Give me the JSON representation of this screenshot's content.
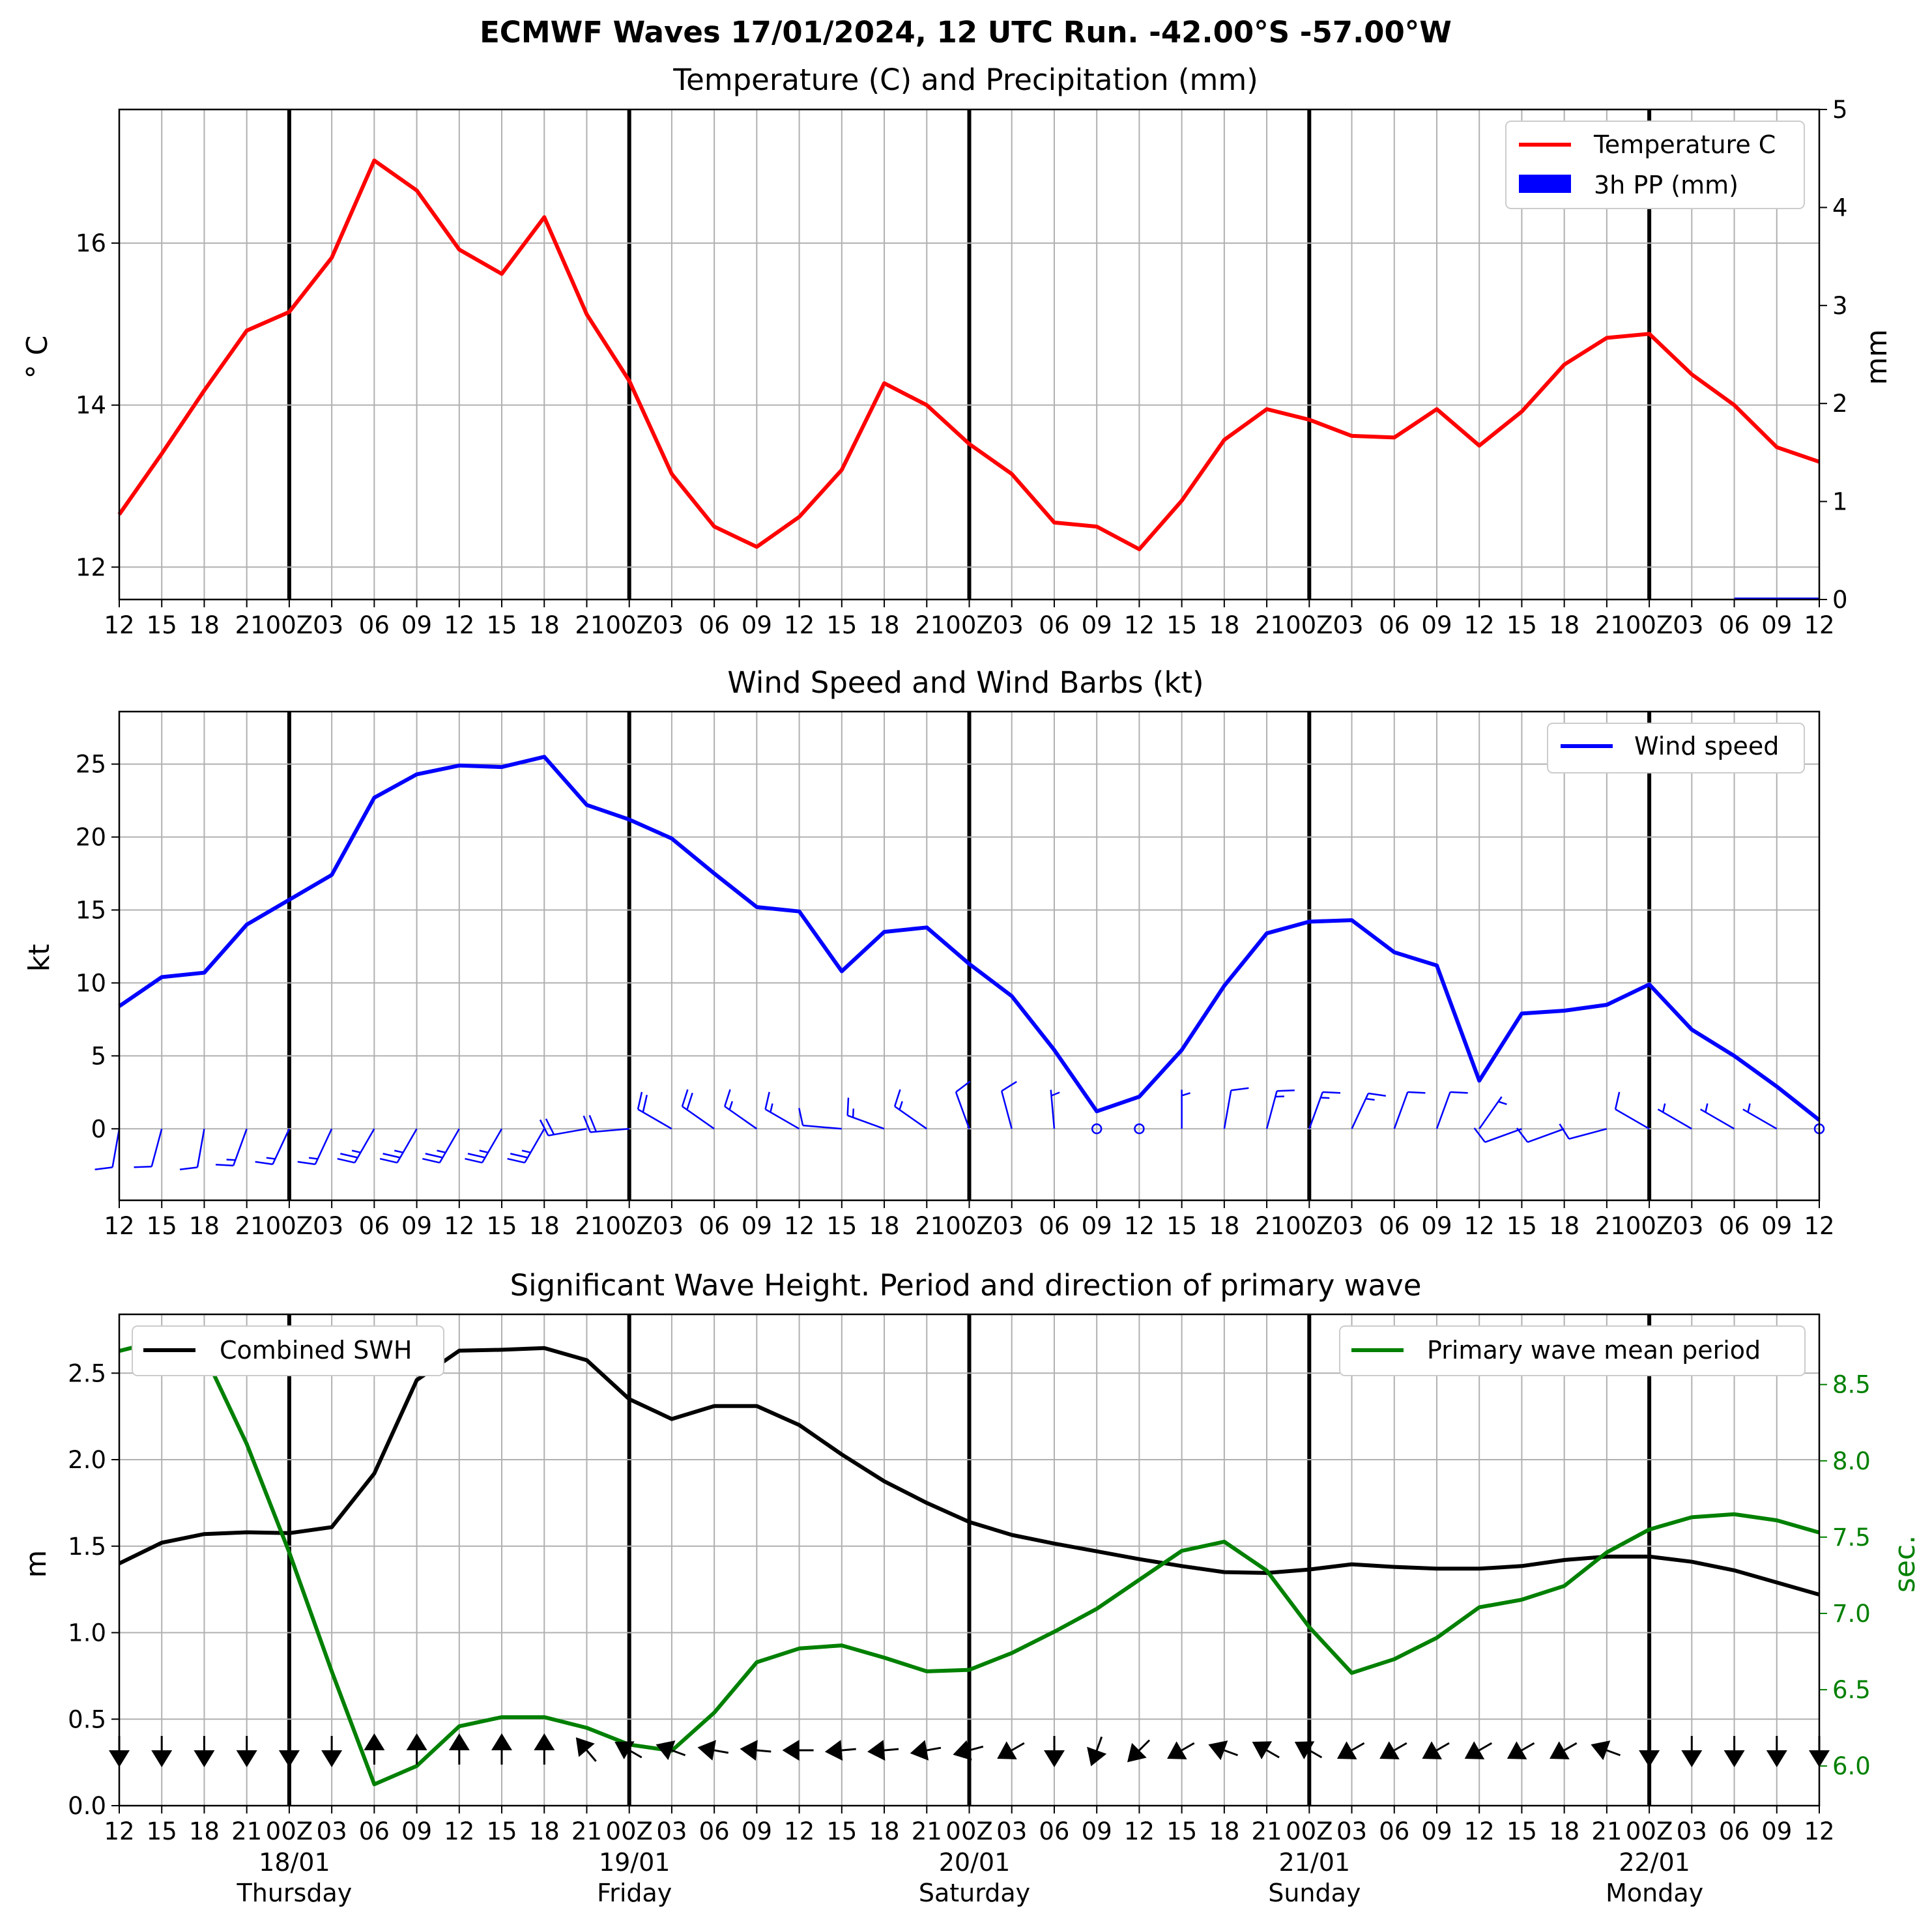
{
  "title": "ECMWF Waves 17/01/2024, 12 UTC Run. -42.00°S -57.00°W",
  "x_tick_labels": [
    "12",
    "15",
    "18",
    "21",
    "00Z",
    "03",
    "06",
    "09",
    "12",
    "15",
    "18",
    "21",
    "00Z",
    "03",
    "06",
    "09",
    "12",
    "15",
    "18",
    "21",
    "00Z",
    "03",
    "06",
    "09",
    "12",
    "15",
    "18",
    "21",
    "00Z",
    "03",
    "06",
    "09",
    "12",
    "15",
    "18",
    "21",
    "00Z",
    "03",
    "06",
    "09",
    "12"
  ],
  "top_tick_labels": [
    "12",
    "15",
    "18",
    "2100Z03",
    "06",
    "09",
    "12",
    "15",
    "18",
    "2100Z03",
    "06",
    "09",
    "12",
    "15",
    "18",
    "2100Z03",
    "06",
    "09",
    "12",
    "15",
    "18",
    "2100Z03",
    "06",
    "09",
    "12",
    "15",
    "18",
    "2100Z03",
    "06",
    "09",
    "12"
  ],
  "day_labels": [
    {
      "date": "18/01",
      "day": "Thursday"
    },
    {
      "date": "19/01",
      "day": "Friday"
    },
    {
      "date": "20/01",
      "day": "Saturday"
    },
    {
      "date": "21/01",
      "day": "Sunday"
    },
    {
      "date": "22/01",
      "day": "Monday"
    }
  ],
  "colors": {
    "temperature": "#ff0000",
    "precip": "#0000ff",
    "wind": "#0000ff",
    "swh": "#000000",
    "period": "#008000"
  },
  "chart_data": [
    {
      "type": "line",
      "title": "Temperature (C) and Precipitation (mm)",
      "ylabel": "$^\\circ$C",
      "ylabel_display": "° C",
      "y2label": "mm",
      "ylim": [
        11.6,
        17.65
      ],
      "y2lim": [
        0,
        5
      ],
      "yticks": [
        12,
        14,
        16
      ],
      "y2ticks": [
        0,
        1,
        2,
        3,
        4,
        5
      ],
      "legend": [
        "Temperature C",
        "3h PP (mm)"
      ],
      "legend_position": "top-right",
      "grid": true,
      "series": [
        {
          "name": "Temperature C",
          "values": [
            12.65,
            13.4,
            14.18,
            14.92,
            15.15,
            15.82,
            17.02,
            16.65,
            15.92,
            15.62,
            16.32,
            15.12,
            14.3,
            13.15,
            12.5,
            12.25,
            12.62,
            13.2,
            14.27,
            14.0,
            13.52,
            13.15,
            12.55,
            12.5,
            12.22,
            12.82,
            13.57,
            13.95,
            13.82,
            13.62,
            13.6,
            13.95,
            13.5,
            13.92,
            14.5,
            14.83,
            14.88,
            14.38,
            14.0,
            13.48,
            13.3
          ]
        },
        {
          "name": "3h PP (mm)",
          "values": [
            0,
            0,
            0,
            0,
            0,
            0,
            0,
            0,
            0,
            0,
            0,
            0,
            0,
            0,
            0,
            0,
            0,
            0,
            0,
            0,
            0,
            0,
            0,
            0,
            0,
            0,
            0,
            0,
            0,
            0,
            0,
            0,
            0,
            0,
            0,
            0,
            0,
            0,
            0,
            0.02,
            0.02
          ]
        }
      ]
    },
    {
      "type": "line",
      "title": "Wind Speed and Wind Barbs (kt)",
      "ylabel": "kt",
      "ylim": [
        -4.9,
        28.6
      ],
      "yticks": [
        0,
        5,
        10,
        15,
        20,
        25
      ],
      "legend": [
        "Wind speed"
      ],
      "legend_position": "top-right",
      "grid": true,
      "series": [
        {
          "name": "Wind speed",
          "values": [
            8.4,
            10.4,
            10.7,
            14.0,
            15.7,
            17.4,
            22.7,
            24.3,
            24.9,
            24.8,
            25.5,
            22.2,
            21.2,
            19.9,
            17.5,
            15.2,
            14.9,
            10.8,
            13.5,
            13.8,
            11.3,
            9.1,
            5.4,
            1.2,
            2.2,
            5.4,
            9.8,
            13.4,
            14.2,
            14.3,
            12.1,
            11.2,
            3.3,
            7.9,
            8.1,
            8.5,
            9.9,
            6.8,
            5.0,
            2.9,
            0.6
          ]
        }
      ],
      "barb_directions_deg": [
        190,
        195,
        190,
        200,
        205,
        205,
        210,
        210,
        210,
        210,
        210,
        260,
        265,
        300,
        305,
        305,
        300,
        275,
        290,
        305,
        340,
        345,
        355,
        0,
        0,
        0,
        10,
        15,
        20,
        25,
        20,
        20,
        35,
        250,
        250,
        255,
        300,
        300,
        300,
        300,
        325
      ]
    },
    {
      "type": "line",
      "title": "Significant Wave Height. Period and direction of primary wave",
      "ylabel": "m",
      "y2label": "sec.",
      "ylim": [
        0,
        2.84
      ],
      "y2lim": [
        5.74,
        8.96
      ],
      "yticks": [
        0.0,
        0.5,
        1.0,
        1.5,
        2.0,
        2.5
      ],
      "y2ticks": [
        6.0,
        6.5,
        7.0,
        7.5,
        8.0,
        8.5
      ],
      "legend": [
        "Combined SWH",
        "Primary wave mean period"
      ],
      "legend_position": "top-left, top-right",
      "grid": true,
      "series": [
        {
          "name": "Combined SWH",
          "values": [
            1.4,
            1.52,
            1.57,
            1.58,
            1.575,
            1.61,
            1.92,
            2.46,
            2.63,
            2.635,
            2.645,
            2.575,
            2.35,
            2.235,
            2.31,
            2.31,
            2.2,
            2.03,
            1.875,
            1.75,
            1.64,
            1.565,
            1.515,
            1.47,
            1.425,
            1.385,
            1.35,
            1.345,
            1.365,
            1.395,
            1.38,
            1.37,
            1.37,
            1.385,
            1.42,
            1.44,
            1.44,
            1.41,
            1.36,
            1.29,
            1.22
          ]
        },
        {
          "name": "Primary wave mean period",
          "values": [
            8.72,
            8.79,
            8.7,
            8.11,
            7.4,
            6.62,
            5.88,
            6.0,
            6.26,
            6.32,
            6.32,
            6.25,
            6.14,
            6.1,
            6.35,
            6.68,
            6.77,
            6.79,
            6.71,
            6.62,
            6.63,
            6.74,
            6.88,
            7.03,
            7.22,
            7.41,
            7.47,
            7.28,
            6.91,
            6.61,
            6.7,
            6.84,
            7.04,
            7.09,
            7.18,
            7.4,
            7.55,
            7.63,
            7.65,
            7.61,
            7.53
          ]
        }
      ],
      "direction_arrows_deg": [
        180,
        180,
        180,
        180,
        180,
        180,
        0,
        0,
        0,
        0,
        0,
        320,
        300,
        290,
        280,
        275,
        270,
        265,
        265,
        260,
        255,
        240,
        180,
        200,
        225,
        240,
        290,
        300,
        300,
        240,
        240,
        240,
        240,
        240,
        240,
        290,
        180,
        180,
        180,
        180,
        180
      ]
    }
  ]
}
